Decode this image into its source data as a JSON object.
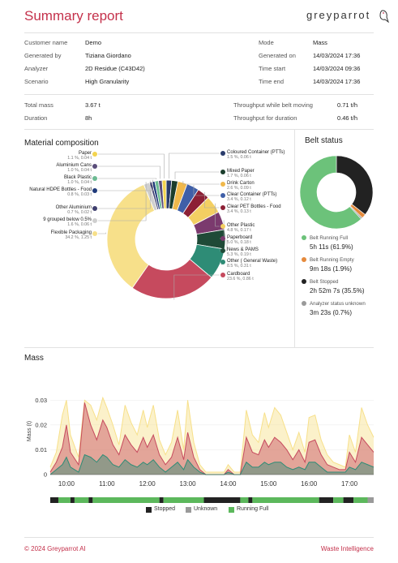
{
  "header": {
    "title": "Summary report",
    "logo_text": "greyparrot"
  },
  "info_left": [
    {
      "label": "Customer name",
      "value": "Demo"
    },
    {
      "label": "Generated by",
      "value": "Tiziana Giordano"
    },
    {
      "label": "Analyzer",
      "value": "2D Residue (C43D42)"
    },
    {
      "label": "Scenario",
      "value": "High Granularity"
    }
  ],
  "info_right": [
    {
      "label": "Mode",
      "value": "Mass"
    },
    {
      "label": "Generated on",
      "value": "14/03/2024 17:36"
    },
    {
      "label": "Time start",
      "value": "14/03/2024 09:36"
    },
    {
      "label": "Time end",
      "value": "14/03/2024 17:36"
    }
  ],
  "totals_left": [
    {
      "label": "Total mass",
      "value": "3.67 t"
    },
    {
      "label": "Duration",
      "value": "8h"
    }
  ],
  "totals_right": [
    {
      "label": "Throughput while belt moving",
      "value": "0.71 t/h"
    },
    {
      "label": "Throughput for duration",
      "value": "0.46 t/h"
    }
  ],
  "material": {
    "title": "Material composition",
    "left_items": [
      {
        "name": "Paper",
        "detail": "1.1 %, 0.04 t",
        "color": "#f3d44f"
      },
      {
        "name": "Aluminium Cans",
        "detail": "1.0 %, 0.04 t",
        "color": "#5a4d7a"
      },
      {
        "name": "Black Plastic",
        "detail": "1.0 %, 0.04 t",
        "color": "#6dbb93"
      },
      {
        "name": "Natural HDPE Bottles - Food",
        "detail": "0.8 %, 0.03 t",
        "color": "#1f3a7a"
      },
      {
        "name": "Other Aluminium",
        "detail": "0.7 %, 0.02 t",
        "color": "#3f3f6e"
      },
      {
        "name": "9 grouped below 0.5%",
        "detail": "1.6 %, 0.06 t",
        "color": "#cfcfcf"
      },
      {
        "name": "Flexible Packaging",
        "detail": "34.2 %, 1.25 t",
        "color": "#f7e08a"
      }
    ],
    "right_items": [
      {
        "name": "Coloured Container (PTTs)",
        "detail": "1.5 %, 0.06 t",
        "color": "#2a3c6b"
      },
      {
        "name": "Mixed Paper",
        "detail": "1.7 %, 0.06 t",
        "color": "#1b3d2c"
      },
      {
        "name": "Drink Carton",
        "detail": "2.6 %, 0.09 t",
        "color": "#f0b84b"
      },
      {
        "name": "Clear Container (PTTs)",
        "detail": "3.4 %, 0.12 t",
        "color": "#3f5fa8"
      },
      {
        "name": "Clear PET Bottles - Food",
        "detail": "3.4 %, 0.13 t",
        "color": "#8c2035"
      },
      {
        "name": "Other Plastic",
        "detail": "4.8 %, 0.17 t",
        "color": "#f3cf62"
      },
      {
        "name": "Paperboard",
        "detail": "5.0 %, 0.18 t",
        "color": "#7b3a6e"
      },
      {
        "name": "News & PAMS",
        "detail": "5.3 %, 0.19 t",
        "color": "#1f4a37"
      },
      {
        "name": "Other ( General Waste)",
        "detail": "8.5 %, 0.31 t",
        "color": "#2e8c76"
      },
      {
        "name": "Cardboard",
        "detail": "23.6 %, 0.86 t",
        "color": "#c64a5e"
      }
    ]
  },
  "belt": {
    "title": "Belt status",
    "items": [
      {
        "label": "Belt Running Full",
        "value": "5h 11s (61.9%)",
        "color": "#6cc27a",
        "pct": 61.9
      },
      {
        "label": "Belt Running Empty",
        "value": "9m 18s (1.9%)",
        "color": "#e58a3c",
        "pct": 1.9
      },
      {
        "label": "Belt Stopped",
        "value": "2h 52m 7s (35.5%)",
        "color": "#222222",
        "pct": 35.5
      },
      {
        "label": "Analyzer status unknown",
        "value": "3m 23s (0.7%)",
        "color": "#9a9a9a",
        "pct": 0.7
      }
    ]
  },
  "chart_data": {
    "type": "area",
    "title": "Mass",
    "ylabel": "Mass (t)",
    "ylim": [
      0,
      0.035
    ],
    "yticks": [
      "0",
      "0.01",
      "0.02",
      "0.03"
    ],
    "x_ticks": [
      "10:00",
      "11:00",
      "12:00",
      "13:00",
      "14:00",
      "15:00",
      "16:00",
      "17:00"
    ],
    "x_hours": [
      9.6,
      9.75,
      9.9,
      10.0,
      10.1,
      10.3,
      10.45,
      10.6,
      10.75,
      10.9,
      11.0,
      11.15,
      11.3,
      11.45,
      11.6,
      11.75,
      11.9,
      12.0,
      12.15,
      12.3,
      12.45,
      12.6,
      12.75,
      12.9,
      13.0,
      13.15,
      13.3,
      13.45,
      13.6,
      13.75,
      13.9,
      14.0,
      14.15,
      14.3,
      14.45,
      14.6,
      14.75,
      14.9,
      15.0,
      15.15,
      15.3,
      15.45,
      15.6,
      15.75,
      15.9,
      16.0,
      16.15,
      16.3,
      16.45,
      16.6,
      16.75,
      16.9,
      17.0,
      17.15,
      17.3,
      17.45,
      17.6
    ],
    "series": [
      {
        "name": "Flexible Packaging",
        "color": "#f7e08a",
        "values": [
          0.003,
          0.009,
          0.024,
          0.03,
          0.016,
          0.007,
          0.03,
          0.028,
          0.022,
          0.031,
          0.027,
          0.02,
          0.012,
          0.028,
          0.021,
          0.016,
          0.026,
          0.019,
          0.028,
          0.014,
          0.008,
          0.013,
          0.026,
          0.01,
          0.03,
          0.013,
          0.004,
          0.001,
          0.001,
          0.001,
          0.001,
          0.004,
          0.001,
          0.001,
          0.026,
          0.016,
          0.013,
          0.025,
          0.019,
          0.027,
          0.024,
          0.017,
          0.01,
          0.017,
          0.009,
          0.023,
          0.024,
          0.014,
          0.008,
          0.005,
          0.004,
          0.003,
          0.016,
          0.009,
          0.027,
          0.02,
          0.015
        ]
      },
      {
        "name": "Cardboard",
        "color": "#c64a5e",
        "values": [
          0.001,
          0.005,
          0.011,
          0.02,
          0.009,
          0.004,
          0.029,
          0.02,
          0.014,
          0.022,
          0.019,
          0.012,
          0.008,
          0.016,
          0.012,
          0.009,
          0.015,
          0.011,
          0.016,
          0.008,
          0.004,
          0.007,
          0.015,
          0.006,
          0.017,
          0.007,
          0.002,
          0.0,
          0.0,
          0.0,
          0.0,
          0.002,
          0.0,
          0.0,
          0.015,
          0.009,
          0.008,
          0.014,
          0.011,
          0.015,
          0.013,
          0.01,
          0.006,
          0.01,
          0.005,
          0.013,
          0.014,
          0.008,
          0.004,
          0.003,
          0.002,
          0.002,
          0.009,
          0.005,
          0.015,
          0.012,
          0.009
        ]
      },
      {
        "name": "Other ( General Waste)",
        "color": "#2e8c76",
        "values": [
          0.0,
          0.002,
          0.004,
          0.007,
          0.003,
          0.001,
          0.008,
          0.007,
          0.005,
          0.008,
          0.007,
          0.004,
          0.003,
          0.006,
          0.004,
          0.003,
          0.005,
          0.004,
          0.006,
          0.003,
          0.001,
          0.003,
          0.005,
          0.002,
          0.006,
          0.003,
          0.001,
          0.0,
          0.0,
          0.0,
          0.0,
          0.001,
          0.0,
          0.0,
          0.005,
          0.003,
          0.003,
          0.005,
          0.004,
          0.005,
          0.005,
          0.003,
          0.002,
          0.003,
          0.002,
          0.005,
          0.005,
          0.003,
          0.001,
          0.001,
          0.001,
          0.001,
          0.003,
          0.002,
          0.005,
          0.004,
          0.003
        ]
      }
    ],
    "status_strip": {
      "legend": [
        {
          "label": "Stopped",
          "color": "#222222"
        },
        {
          "label": "Unknown",
          "color": "#9a9a9a"
        },
        {
          "label": "Running Full",
          "color": "#5cb85c"
        }
      ],
      "segments": [
        {
          "status": "Stopped",
          "from": 9.6,
          "to": 9.8
        },
        {
          "status": "Running Full",
          "from": 9.8,
          "to": 10.1
        },
        {
          "status": "Stopped",
          "from": 10.1,
          "to": 10.2
        },
        {
          "status": "Running Full",
          "from": 10.2,
          "to": 10.55
        },
        {
          "status": "Stopped",
          "from": 10.55,
          "to": 10.65
        },
        {
          "status": "Running Full",
          "from": 10.65,
          "to": 12.3
        },
        {
          "status": "Stopped",
          "from": 12.3,
          "to": 12.4
        },
        {
          "status": "Running Full",
          "from": 12.4,
          "to": 13.4
        },
        {
          "status": "Stopped",
          "from": 13.4,
          "to": 14.3
        },
        {
          "status": "Running Full",
          "from": 14.3,
          "to": 14.5
        },
        {
          "status": "Stopped",
          "from": 14.5,
          "to": 14.6
        },
        {
          "status": "Running Full",
          "from": 14.6,
          "to": 16.25
        },
        {
          "status": "Stopped",
          "from": 16.25,
          "to": 16.6
        },
        {
          "status": "Running Full",
          "from": 16.6,
          "to": 16.85
        },
        {
          "status": "Stopped",
          "from": 16.85,
          "to": 17.1
        },
        {
          "status": "Running Full",
          "from": 17.1,
          "to": 17.45
        },
        {
          "status": "Unknown",
          "from": 17.45,
          "to": 17.6
        }
      ]
    }
  },
  "footer": {
    "copyright": "© 2024 Greyparrot AI",
    "tagline": "Waste Intelligence"
  }
}
